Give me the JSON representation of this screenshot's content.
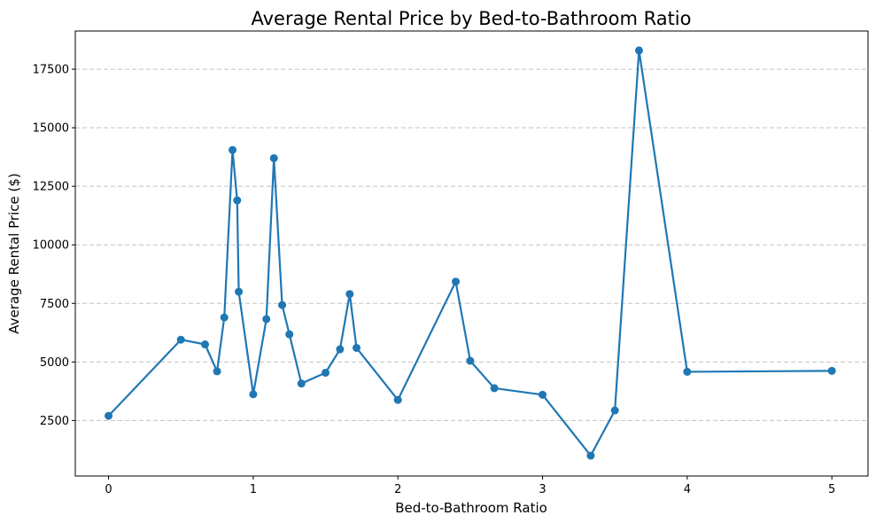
{
  "chart_data": {
    "type": "line",
    "title": "Average Rental Price by Bed-to-Bathroom Ratio",
    "xlabel": "Bed-to-Bathroom Ratio",
    "ylabel": "Average Rental Price ($)",
    "xlim": [
      -0.23,
      5.25
    ],
    "ylim": [
      130,
      19130
    ],
    "x_ticks": [
      0,
      1,
      2,
      3,
      4,
      5
    ],
    "y_ticks": [
      2500,
      5000,
      7500,
      10000,
      12500,
      15000,
      17500
    ],
    "grid": {
      "y": true,
      "x": false,
      "style": "dashed"
    },
    "series": [
      {
        "color": "#1f77b4",
        "marker": "circle",
        "points": [
          {
            "x": 0,
            "y": 2700
          },
          {
            "x": 0.5,
            "y": 5950
          },
          {
            "x": 0.667,
            "y": 5750
          },
          {
            "x": 0.75,
            "y": 4600
          },
          {
            "x": 0.8,
            "y": 6900
          },
          {
            "x": 0.857,
            "y": 14050
          },
          {
            "x": 0.889,
            "y": 11900
          },
          {
            "x": 0.9,
            "y": 8000
          },
          {
            "x": 1.0,
            "y": 3620
          },
          {
            "x": 1.091,
            "y": 6830
          },
          {
            "x": 1.143,
            "y": 13700
          },
          {
            "x": 1.2,
            "y": 7430
          },
          {
            "x": 1.25,
            "y": 6180
          },
          {
            "x": 1.333,
            "y": 4080
          },
          {
            "x": 1.5,
            "y": 4540
          },
          {
            "x": 1.6,
            "y": 5540
          },
          {
            "x": 1.667,
            "y": 7900
          },
          {
            "x": 1.714,
            "y": 5600
          },
          {
            "x": 2.0,
            "y": 3380
          },
          {
            "x": 2.4,
            "y": 8430
          },
          {
            "x": 2.5,
            "y": 5050
          },
          {
            "x": 2.667,
            "y": 3880
          },
          {
            "x": 3.0,
            "y": 3600
          },
          {
            "x": 3.333,
            "y": 1000
          },
          {
            "x": 3.5,
            "y": 2930
          },
          {
            "x": 3.667,
            "y": 18300
          },
          {
            "x": 4.0,
            "y": 4580
          },
          {
            "x": 5.0,
            "y": 4620
          }
        ]
      }
    ]
  }
}
